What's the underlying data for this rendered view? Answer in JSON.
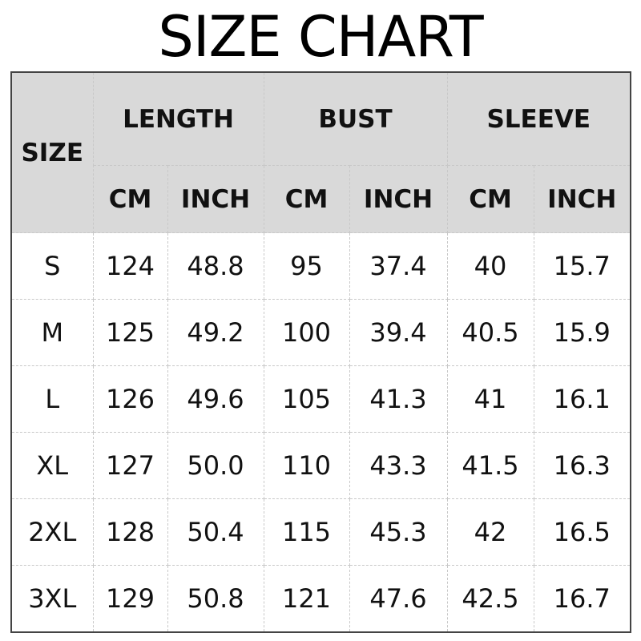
{
  "title": "SIZE CHART",
  "table": {
    "size_header": "SIZE",
    "groups": [
      "LENGTH",
      "BUST",
      "SLEEVE"
    ],
    "units": [
      "CM",
      "INCH",
      "CM",
      "INCH",
      "CM",
      "INCH"
    ],
    "rows": [
      [
        "S",
        "124",
        "48.8",
        "95",
        "37.4",
        "40",
        "15.7"
      ],
      [
        "M",
        "125",
        "49.2",
        "100",
        "39.4",
        "40.5",
        "15.9"
      ],
      [
        "L",
        "126",
        "49.6",
        "105",
        "41.3",
        "41",
        "16.1"
      ],
      [
        "XL",
        "127",
        "50.0",
        "110",
        "43.3",
        "41.5",
        "16.3"
      ],
      [
        "2XL",
        "128",
        "50.4",
        "115",
        "45.3",
        "42",
        "16.5"
      ],
      [
        "3XL",
        "129",
        "50.8",
        "121",
        "47.6",
        "42.5",
        "16.7"
      ]
    ]
  },
  "colors": {
    "header_bg": "#d9d9d9",
    "border": "#444444"
  }
}
